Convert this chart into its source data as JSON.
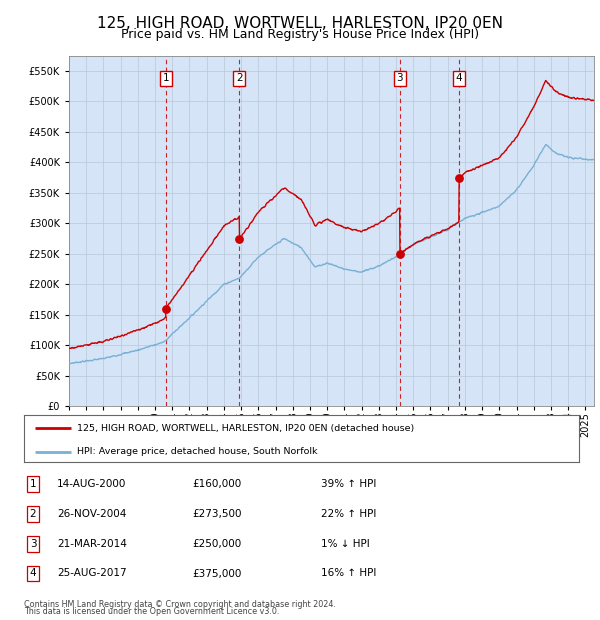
{
  "title": "125, HIGH ROAD, WORTWELL, HARLESTON, IP20 0EN",
  "subtitle": "Price paid vs. HM Land Registry's House Price Index (HPI)",
  "legend_property": "125, HIGH ROAD, WORTWELL, HARLESTON, IP20 0EN (detached house)",
  "legend_hpi": "HPI: Average price, detached house, South Norfolk",
  "footer1": "Contains HM Land Registry data © Crown copyright and database right 2024.",
  "footer2": "This data is licensed under the Open Government Licence v3.0.",
  "sales": [
    {
      "num": 1,
      "date": "14-AUG-2000",
      "price": 160000,
      "pct": "39%",
      "dir": "↑"
    },
    {
      "num": 2,
      "date": "26-NOV-2004",
      "price": 273500,
      "pct": "22%",
      "dir": "↑"
    },
    {
      "num": 3,
      "date": "21-MAR-2014",
      "price": 250000,
      "pct": "1%",
      "dir": "↓"
    },
    {
      "num": 4,
      "date": "25-AUG-2017",
      "price": 375000,
      "pct": "16%",
      "dir": "↑"
    }
  ],
  "sale_dates_decimal": [
    2000.617,
    2004.899,
    2014.219,
    2017.647
  ],
  "sale_prices": [
    160000,
    273500,
    250000,
    375000
  ],
  "ylim": [
    0,
    575000
  ],
  "xlim_start": 1995.0,
  "xlim_end": 2025.5,
  "property_color": "#cc0000",
  "hpi_color": "#7ab0d4",
  "vline_color": "#cc0000",
  "plot_bg": "#ddeeff",
  "grid_color": "#b8c8d8",
  "title_fontsize": 11,
  "subtitle_fontsize": 9,
  "tick_fontsize": 7,
  "label_fontsize": 7.5
}
